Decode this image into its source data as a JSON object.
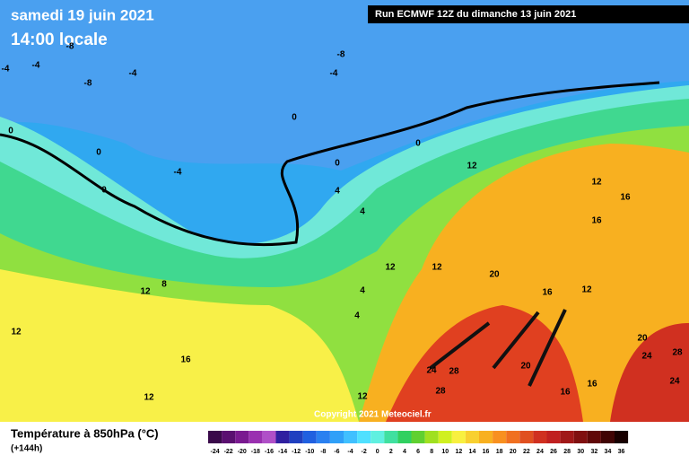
{
  "header": {
    "date": "samedi 19 juin 2021",
    "time": "14:00 locale",
    "run": "Run ECMWF 12Z du dimanche 13 juin 2021"
  },
  "footer": {
    "title": "Température à 850hPa (°C)",
    "lead": "(+144h)",
    "copyright": "Copyright 2021 Meteociel.fr"
  },
  "scale": {
    "ticks": [
      -24,
      -22,
      -20,
      -18,
      -16,
      -14,
      -12,
      -10,
      -8,
      -6,
      -4,
      -2,
      0,
      2,
      4,
      6,
      8,
      10,
      12,
      14,
      16,
      18,
      20,
      22,
      24,
      26,
      28,
      30,
      32,
      34,
      36
    ],
    "colors": [
      "#3a0a4a",
      "#5a1070",
      "#7a1a90",
      "#9a30b0",
      "#b050c8",
      "#3020a0",
      "#2040c0",
      "#2060e0",
      "#2a80f0",
      "#30a0f8",
      "#40c0ff",
      "#50e0ff",
      "#60f0e0",
      "#40e0a0",
      "#30d060",
      "#60d030",
      "#a0e020",
      "#d0f020",
      "#f8f040",
      "#f8d030",
      "#f8b020",
      "#f89020",
      "#f07020",
      "#e05020",
      "#d03020",
      "#c02020",
      "#a01818",
      "#801010",
      "#600808",
      "#400404",
      "#180000"
    ]
  },
  "contour_labels": [
    -8,
    -8,
    -4,
    -8,
    -4,
    -4,
    -4,
    0,
    0,
    0,
    0,
    0,
    0,
    -4,
    4,
    4,
    4,
    4,
    8,
    12,
    12,
    12,
    12,
    12,
    12,
    16,
    16,
    16,
    12,
    12,
    20,
    16,
    12,
    24,
    28,
    28,
    20,
    16,
    16,
    20,
    24,
    28,
    24
  ]
}
